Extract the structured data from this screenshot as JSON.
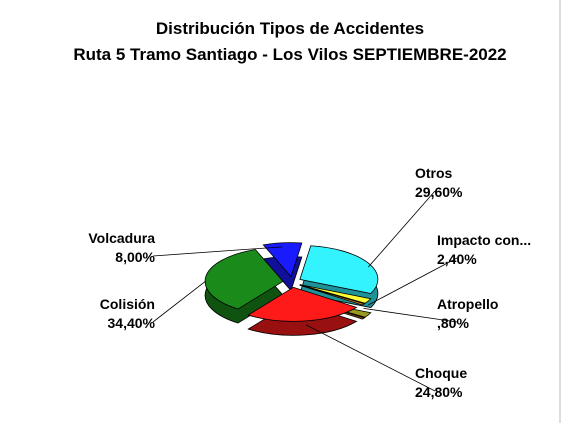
{
  "chart_data": {
    "type": "pie",
    "title": "Distribución Tipos de Accidentes",
    "subtitle": "Ruta 5 Tramo Santiago - Los Vilos SEPTIEMBRE-2022",
    "categories": [
      "Otros",
      "Impacto con...",
      "Atropello",
      "Choque",
      "Colisión",
      "Volcadura"
    ],
    "values": [
      29.6,
      2.4,
      0.8,
      24.8,
      34.4,
      8.0
    ],
    "value_labels": [
      "29,60%",
      "2,40%",
      ",80%",
      "24,80%",
      "34,40%",
      "8,00%"
    ],
    "colors": [
      "#33f3ff",
      "#ffff33",
      "#c8781e",
      "#ff1a1a",
      "#1a8a1a",
      "#1a1aff"
    ]
  }
}
